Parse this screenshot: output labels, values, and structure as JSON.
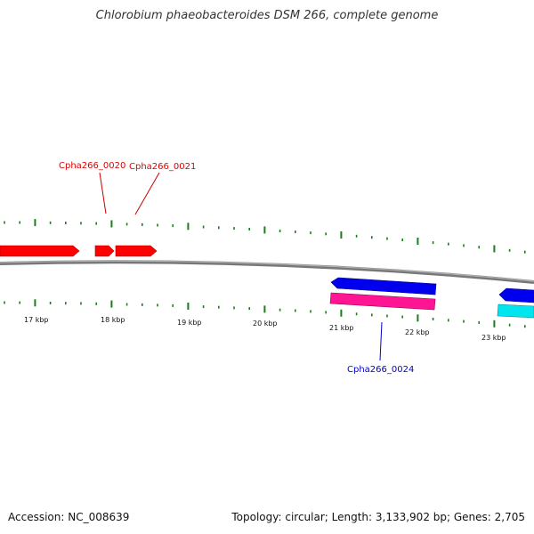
{
  "title": "Chlorobium phaeobacteroides DSM 266, complete genome",
  "footer": {
    "accession": "Accession: NC_008639",
    "info": "Topology: circular; Length: 3,133,902 bp; Genes: 2,705"
  },
  "colors": {
    "forward_gene": "#ff0000",
    "reverse_gene": "#0000ee",
    "rna_gene": "#ff1493",
    "cds_gene": "#00e5ee",
    "backbone": "#808080",
    "ticks": "#1a7f1a",
    "label_forward": "#dd0000",
    "label_reverse": "#0000cc"
  },
  "scale_labels": [
    "17 kbp",
    "18 kbp",
    "19 kbp",
    "20 kbp",
    "21 kbp",
    "22 kbp",
    "23 kbp"
  ],
  "gene_labels": [
    {
      "name": "Cpha266_0020",
      "strand": "forward"
    },
    {
      "name": "Cpha266_0021",
      "strand": "forward"
    },
    {
      "name": "Cpha266_0024",
      "strand": "reverse"
    }
  ]
}
